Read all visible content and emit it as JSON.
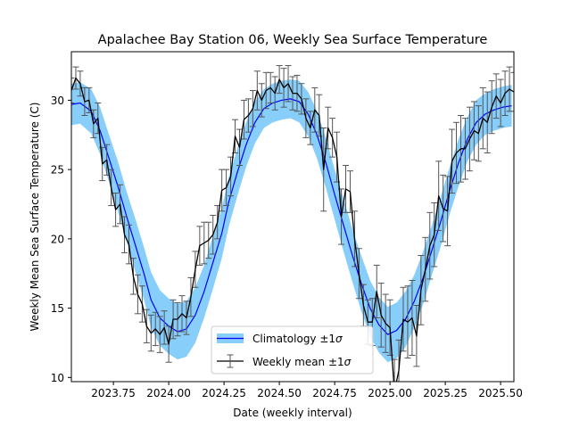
{
  "chart_data": {
    "type": "line",
    "title": "Apalachee Bay Station 06, Weekly Sea Surface Temperature",
    "xlabel": "Date (weekly interval)",
    "ylabel": "Weekly Mean Sea Surface Temperature (C)",
    "xlim": [
      2023.56,
      2025.56
    ],
    "ylim": [
      9.7,
      33.5
    ],
    "xticks": [
      2023.75,
      2024.0,
      2024.25,
      2024.5,
      2024.75,
      2025.0,
      2025.25,
      2025.5
    ],
    "xtick_labels": [
      "2023.75",
      "2024.00",
      "2024.25",
      "2024.50",
      "2024.75",
      "2025.00",
      "2025.25",
      "2025.50"
    ],
    "yticks": [
      10,
      15,
      20,
      25,
      30
    ],
    "ytick_labels": [
      "10",
      "15",
      "20",
      "25",
      "30"
    ],
    "grid": false,
    "legend": {
      "placement": "bottom-center",
      "entries": [
        {
          "label_prefix": "Climatology ±1",
          "label_symbol": "σ"
        },
        {
          "label_prefix": "Weekly mean ±1",
          "label_symbol": "σ"
        }
      ]
    },
    "colors": {
      "climatology_line": "#0000ff",
      "climatology_band": "#87cefa",
      "weekly_line": "#000000",
      "errorbar": "#555555"
    },
    "series": [
      {
        "name": "Climatology",
        "x": [
          2023.56,
          2023.6,
          2023.65,
          2023.69,
          2023.73,
          2023.77,
          2023.81,
          2023.85,
          2023.89,
          2023.92,
          2023.96,
          2024.0,
          2024.04,
          2024.08,
          2024.12,
          2024.16,
          2024.2,
          2024.24,
          2024.27,
          2024.31,
          2024.35,
          2024.39,
          2024.43,
          2024.47,
          2024.51,
          2024.55,
          2024.59,
          2024.63,
          2024.67,
          2024.71,
          2024.75,
          2024.79,
          2024.83,
          2024.87,
          2024.91,
          2024.95,
          2024.99,
          2025.03,
          2025.07,
          2025.11,
          2025.15,
          2025.19,
          2025.23,
          2025.27,
          2025.31,
          2025.35,
          2025.39,
          2025.43,
          2025.47,
          2025.51,
          2025.55
        ],
        "y": [
          29.7,
          29.8,
          29.2,
          27.8,
          25.8,
          23.8,
          21.6,
          19.5,
          17.4,
          15.6,
          14.3,
          13.7,
          13.3,
          13.5,
          14.5,
          16.2,
          18.3,
          20.4,
          22.6,
          24.8,
          26.8,
          28.4,
          29.4,
          29.8,
          30.0,
          30.1,
          29.9,
          29.0,
          27.5,
          25.5,
          23.2,
          21.0,
          18.8,
          16.8,
          15.0,
          13.8,
          13.1,
          13.4,
          14.2,
          15.5,
          17.2,
          19.2,
          21.3,
          23.5,
          25.5,
          27.2,
          28.4,
          29.0,
          29.3,
          29.5,
          29.6
        ],
        "band_halfwidth": [
          1.5,
          1.5,
          1.6,
          1.7,
          1.7,
          1.8,
          1.8,
          1.9,
          1.9,
          2.0,
          2.0,
          2.0,
          2.0,
          2.0,
          2.0,
          1.9,
          1.9,
          1.8,
          1.8,
          1.7,
          1.6,
          1.5,
          1.4,
          1.4,
          1.4,
          1.4,
          1.5,
          1.6,
          1.7,
          1.8,
          1.8,
          1.9,
          1.9,
          2.0,
          2.0,
          2.0,
          2.0,
          2.0,
          2.0,
          1.9,
          1.9,
          1.8,
          1.8,
          1.7,
          1.7,
          1.6,
          1.6,
          1.5,
          1.5,
          1.5,
          1.5
        ]
      },
      {
        "name": "Weekly mean",
        "x": [
          2023.56,
          2023.58,
          2023.6,
          2023.62,
          2023.64,
          2023.66,
          2023.68,
          2023.7,
          2023.72,
          2023.74,
          2023.76,
          2023.78,
          2023.8,
          2023.82,
          2023.84,
          2023.86,
          2023.88,
          2023.9,
          2023.92,
          2023.94,
          2023.96,
          2023.98,
          2024.0,
          2024.02,
          2024.04,
          2024.06,
          2024.08,
          2024.1,
          2024.12,
          2024.14,
          2024.16,
          2024.18,
          2024.2,
          2024.22,
          2024.24,
          2024.26,
          2024.28,
          2024.3,
          2024.32,
          2024.34,
          2024.36,
          2024.38,
          2024.4,
          2024.42,
          2024.44,
          2024.46,
          2024.48,
          2024.5,
          2024.52,
          2024.54,
          2024.56,
          2024.58,
          2024.6,
          2024.62,
          2024.64,
          2024.66,
          2024.68,
          2024.7,
          2024.72,
          2024.74,
          2024.76,
          2024.78,
          2024.8,
          2024.82,
          2024.84,
          2024.86,
          2024.88,
          2024.9,
          2024.92,
          2024.94,
          2024.96,
          2024.98,
          2025.0,
          2025.02,
          2025.04,
          2025.06,
          2025.08,
          2025.1,
          2025.12,
          2025.14,
          2025.16,
          2025.18,
          2025.2,
          2025.22,
          2025.24,
          2025.26,
          2025.28,
          2025.3,
          2025.32,
          2025.34,
          2025.36,
          2025.38,
          2025.4,
          2025.42,
          2025.44,
          2025.46,
          2025.48,
          2025.5,
          2025.52,
          2025.54,
          2025.56
        ],
        "y": [
          30.7,
          31.6,
          31.2,
          29.9,
          30.0,
          28.3,
          28.7,
          25.4,
          25.7,
          23.7,
          22.1,
          22.5,
          20.3,
          19.6,
          17.3,
          16.0,
          15.3,
          13.7,
          13.2,
          13.5,
          13.1,
          13.6,
          12.4,
          14.2,
          14.2,
          14.6,
          14.3,
          15.8,
          17.8,
          19.5,
          19.7,
          19.9,
          20.3,
          21.2,
          23.5,
          23.7,
          24.5,
          27.4,
          26.6,
          28.6,
          28.9,
          29.4,
          30.7,
          30.0,
          30.7,
          30.9,
          30.5,
          31.5,
          30.9,
          31.2,
          30.5,
          30.5,
          30.1,
          28.7,
          28.0,
          29.3,
          28.9,
          25.0,
          28.0,
          27.3,
          25.9,
          21.6,
          23.6,
          23.4,
          20.0,
          17.5,
          15.2,
          14.0,
          14.0,
          16.2,
          14.5,
          13.9,
          13.6,
          9.0,
          10.5,
          14.2,
          14.0,
          14.3,
          13.0,
          16.3,
          17.8,
          19.5,
          20.3,
          23.1,
          22.2,
          22.0,
          25.6,
          26.2,
          26.5,
          26.5,
          27.2,
          27.8,
          27.6,
          28.7,
          28.4,
          29.5,
          30.3,
          29.8,
          30.5,
          30.8,
          30.6
        ],
        "sigma": [
          0.9,
          0.8,
          0.9,
          1.0,
          0.9,
          1.0,
          1.1,
          1.2,
          1.1,
          1.3,
          1.2,
          1.4,
          1.3,
          1.4,
          1.3,
          1.4,
          1.3,
          1.2,
          1.3,
          1.2,
          1.3,
          1.2,
          1.3,
          1.4,
          1.2,
          1.3,
          1.2,
          1.4,
          1.3,
          1.4,
          1.5,
          1.3,
          1.4,
          1.2,
          1.5,
          1.3,
          1.4,
          1.2,
          1.3,
          1.4,
          1.2,
          1.3,
          1.4,
          1.2,
          1.3,
          1.1,
          1.2,
          1.0,
          1.4,
          1.3,
          1.2,
          1.3,
          1.1,
          1.4,
          1.2,
          1.6,
          1.5,
          3.0,
          1.5,
          1.4,
          1.8,
          2.0,
          1.7,
          1.5,
          2.0,
          1.8,
          1.5,
          1.6,
          1.7,
          1.9,
          2.3,
          2.1,
          2.0,
          2.3,
          2.2,
          2.3,
          2.6,
          2.7,
          2.2,
          2.5,
          2.3,
          2.4,
          2.3,
          2.5,
          2.4,
          2.5,
          2.3,
          2.2,
          2.4,
          2.2,
          2.3,
          2.1,
          2.0,
          2.2,
          2.2,
          1.9,
          1.6,
          1.7,
          1.6,
          1.6,
          1.4
        ]
      }
    ]
  }
}
